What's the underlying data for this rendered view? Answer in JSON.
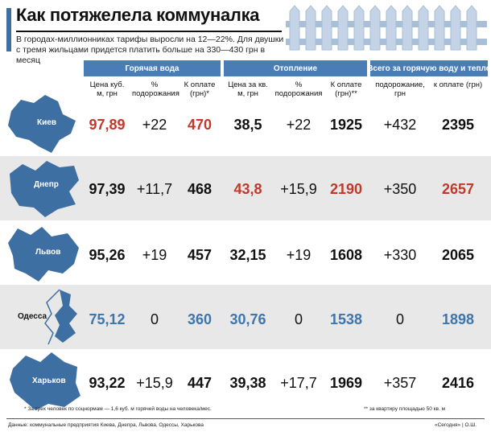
{
  "title": "Как потяжелела коммуналка",
  "subtitle": "В городах-миллионниках тарифы выросли на 12—22%. Для двушки с тремя жильцами придется платить больше на 330—430 грн в месяц",
  "group_headers": [
    "Горячая вода",
    "Отопление",
    "Всего за горячую воду и тепло"
  ],
  "column_headers": [
    "Цена куб. м, грн",
    "% подорожания",
    "К оплате (грн)*",
    "Цена за кв. м, грн",
    "% подорожания",
    "К оплате (грн)**",
    "подорожание, грн",
    "к оплате (грн)"
  ],
  "colors": {
    "accent": "#4a7db5",
    "highlight_red": "#c0392b",
    "highlight_blue": "#3d75ad",
    "shaded_row": "#e8e8e8"
  },
  "chart_data": {
    "type": "table",
    "title": "Как потяжелела коммуналка",
    "columns": [
      "Цена куб. м, грн",
      "% подорожания",
      "К оплате (грн)*",
      "Цена за кв. м, грн",
      "% подорожания",
      "К оплате (грн)**",
      "подорожание, грн",
      "к оплате (грн)"
    ],
    "rows": [
      {
        "city": "Киев",
        "cells": [
          "97,89",
          "+22",
          "470",
          "38,5",
          "+22",
          "1925",
          "+432",
          "2395"
        ],
        "styles": [
          "red",
          "",
          "red",
          "b",
          "",
          "b",
          "",
          "b"
        ]
      },
      {
        "city": "Днепр",
        "cells": [
          "97,39",
          "+11,7",
          "468",
          "43,8",
          "+15,9",
          "2190",
          "+350",
          "2657"
        ],
        "styles": [
          "b",
          "",
          "b",
          "red",
          "",
          "red",
          "",
          "red"
        ]
      },
      {
        "city": "Львов",
        "cells": [
          "95,26",
          "+19",
          "457",
          "32,15",
          "+19",
          "1608",
          "+330",
          "2065"
        ],
        "styles": [
          "b",
          "",
          "b",
          "b",
          "",
          "b",
          "",
          "b"
        ]
      },
      {
        "city": "Одесса",
        "cells": [
          "75,12",
          "0",
          "360",
          "30,76",
          "0",
          "1538",
          "0",
          "1898"
        ],
        "styles": [
          "blue",
          "",
          "blue",
          "blue",
          "",
          "blue",
          "",
          "blue"
        ]
      },
      {
        "city": "Харьков",
        "cells": [
          "93,22",
          "+15,9",
          "447",
          "39,38",
          "+17,7",
          "1969",
          "+357",
          "2416"
        ],
        "styles": [
          "b",
          "",
          "b",
          "b",
          "",
          "b",
          "",
          "b"
        ]
      }
    ]
  },
  "footnotes": {
    "left": "* За трех человек по соцнормам — 1,6 куб. м горячей воды на человека/мес.",
    "right": "** за квартиру площадью 50 кв. м",
    "source": "Данные: коммунальные предприятия Киева, Днепра, Львова, Одессы, Харькова",
    "credit": "«Сегодня» | О.Ш."
  }
}
